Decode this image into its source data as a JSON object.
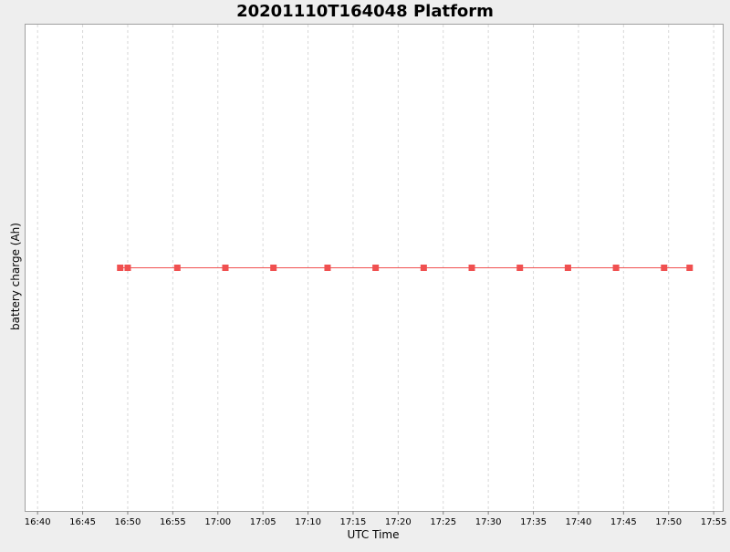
{
  "chart_data": {
    "type": "line",
    "title": "20201110T164048 Platform",
    "xlabel": "UTC Time",
    "ylabel": "battery charge (Ah)",
    "x_ticks": [
      "16:40",
      "16:45",
      "16:50",
      "16:55",
      "17:00",
      "17:05",
      "17:10",
      "17:15",
      "17:20",
      "17:25",
      "17:30",
      "17:35",
      "17:40",
      "17:45",
      "17:50",
      "17:55"
    ],
    "xlim": [
      "16:38:40",
      "17:56:00"
    ],
    "grid": true,
    "series": [
      {
        "color": "#f05050",
        "marker": "square",
        "x": [
          "16:49:10",
          "16:50:00",
          "16:55:30",
          "17:00:50",
          "17:06:10",
          "17:12:10",
          "17:17:30",
          "17:22:50",
          "17:28:10",
          "17:33:30",
          "17:38:50",
          "17:44:10",
          "17:49:30",
          "17:52:20"
        ],
        "y": [
          1,
          1,
          1,
          1,
          1,
          1,
          1,
          1,
          1,
          1,
          1,
          1,
          1,
          1
        ]
      }
    ]
  }
}
